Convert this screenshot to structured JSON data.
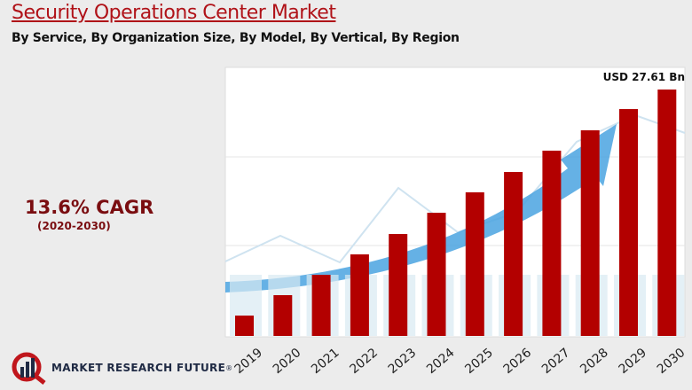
{
  "title": "Security Operations Center Market",
  "subtitle": "By Service, By Organization Size, By Model, By Vertical, By Region",
  "cagr": {
    "value": "13.6% CAGR",
    "period": "(2020-2030)"
  },
  "brand": {
    "name": "MARKET RESEARCH FUTURE",
    "mark": "®"
  },
  "colors": {
    "bar": "#b30000",
    "title": "#b01218",
    "cagr": "#7a0d10",
    "arrow": "#4aa3e0"
  },
  "chart_data": {
    "type": "bar",
    "categories": [
      "2019",
      "2020",
      "2021",
      "2022",
      "2023",
      "2024",
      "2025",
      "2026",
      "2027",
      "2028",
      "2029",
      "2030"
    ],
    "values": [
      2.28,
      4.57,
      6.85,
      9.14,
      11.42,
      13.8,
      16.09,
      18.37,
      20.76,
      23.04,
      25.42,
      27.61
    ],
    "unit": "USD Bn",
    "data_labels": {
      "2030": "USD 27.61 Bn"
    },
    "ylim": [
      0,
      30
    ],
    "grid": true,
    "xlabel": "",
    "ylabel": ""
  }
}
